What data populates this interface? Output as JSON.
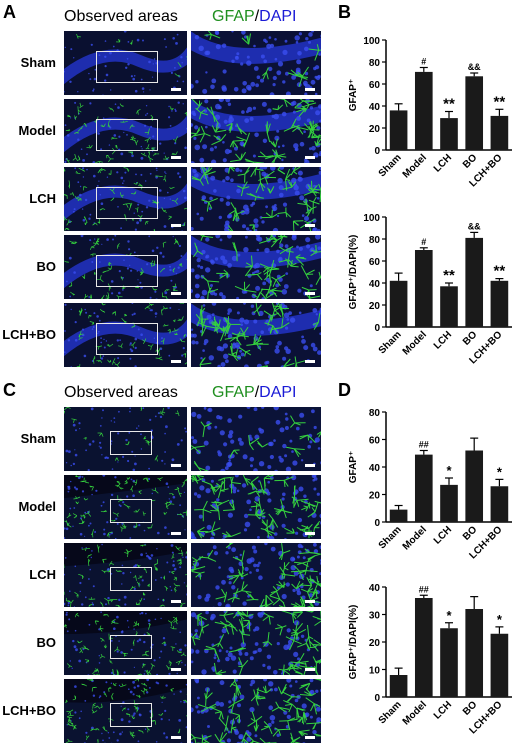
{
  "panels": {
    "A": {
      "letter": "A",
      "rows": [
        "Sham",
        "Model",
        "LCH",
        "BO",
        "LCH+BO"
      ]
    },
    "B": {
      "letter": "B"
    },
    "C": {
      "letter": "C",
      "rows": [
        "Sham",
        "Model",
        "LCH",
        "BO",
        "LCH+BO"
      ]
    },
    "D": {
      "letter": "D"
    }
  },
  "header": {
    "observed": "Observed areas",
    "gfap": "GFAP",
    "slash": "/",
    "dapi": "DAPI"
  },
  "colors": {
    "bar": "#1a1a1a",
    "gfap_text": "#1f8f1f",
    "dapi_text": "#1a1ad6",
    "tissue_blue": "#1c2fa8",
    "tissue_green": "#2fbf3a"
  },
  "chart_data": [
    {
      "id": "B-top",
      "type": "bar",
      "categories": [
        "Sham",
        "Model",
        "LCH",
        "BO",
        "LCH+BO"
      ],
      "values": [
        36,
        71,
        29,
        67,
        31
      ],
      "errors": [
        6,
        4,
        6,
        3,
        6
      ],
      "annotations": [
        "",
        "#",
        "**",
        "&&",
        "**"
      ],
      "ylabel": "GFAP⁺",
      "ylim": [
        0,
        100
      ],
      "yticks": [
        0,
        20,
        40,
        60,
        80,
        100
      ]
    },
    {
      "id": "B-bottom",
      "type": "bar",
      "categories": [
        "Sham",
        "Model",
        "LCH",
        "BO",
        "LCH+BO"
      ],
      "values": [
        42,
        70,
        37,
        81,
        42
      ],
      "errors": [
        7,
        2,
        3,
        5,
        2
      ],
      "annotations": [
        "",
        "#",
        "**",
        "&&",
        "**"
      ],
      "ylabel": "GFAP⁺/DAPI(%)",
      "ylim": [
        0,
        100
      ],
      "yticks": [
        0,
        20,
        40,
        60,
        80,
        100
      ]
    },
    {
      "id": "D-top",
      "type": "bar",
      "categories": [
        "Sham",
        "Model",
        "LCH",
        "BO",
        "LCH+BO"
      ],
      "values": [
        9,
        49,
        27,
        52,
        26
      ],
      "errors": [
        3,
        3,
        5,
        9,
        5
      ],
      "annotations": [
        "",
        "##",
        "*",
        "",
        "*"
      ],
      "ylabel": "GFAP⁺",
      "ylim": [
        0,
        80
      ],
      "yticks": [
        0,
        20,
        40,
        60,
        80
      ]
    },
    {
      "id": "D-bottom",
      "type": "bar",
      "categories": [
        "Sham",
        "Model",
        "LCH",
        "BO",
        "LCH+BO"
      ],
      "values": [
        8,
        36,
        25,
        32,
        23
      ],
      "errors": [
        2.5,
        1,
        2,
        4.5,
        2.5
      ],
      "annotations": [
        "",
        "##",
        "*",
        "",
        "*"
      ],
      "ylabel": "GFAP⁺/DAPI(%)",
      "ylim": [
        0,
        40
      ],
      "yticks": [
        0,
        10,
        20,
        30,
        40
      ]
    }
  ]
}
